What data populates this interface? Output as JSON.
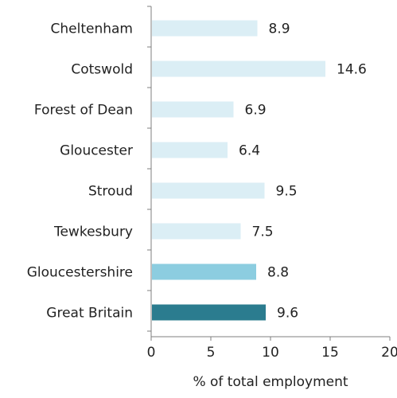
{
  "chart_data": {
    "type": "bar",
    "orientation": "horizontal",
    "categories": [
      "Cheltenham",
      "Cotswold",
      "Forest of Dean",
      "Gloucester",
      "Stroud",
      "Tewkesbury",
      "Gloucestershire",
      "Great Britain"
    ],
    "values": [
      8.9,
      14.6,
      6.9,
      6.4,
      9.5,
      7.5,
      8.8,
      9.6
    ],
    "data_labels": [
      "8.9",
      "14.6",
      "6.9",
      "6.4",
      "9.5",
      "7.5",
      "8.8",
      "9.6"
    ],
    "bar_colors": [
      "#dbeef5",
      "#dbeef5",
      "#dbeef5",
      "#dbeef5",
      "#dbeef5",
      "#dbeef5",
      "#8ccde0",
      "#2b7c8f"
    ],
    "xlabel": "% of total employment",
    "xlim": [
      0,
      20
    ],
    "xticks": [
      "0",
      "5",
      "10",
      "15",
      "20"
    ],
    "grid": false,
    "legend": "none"
  }
}
